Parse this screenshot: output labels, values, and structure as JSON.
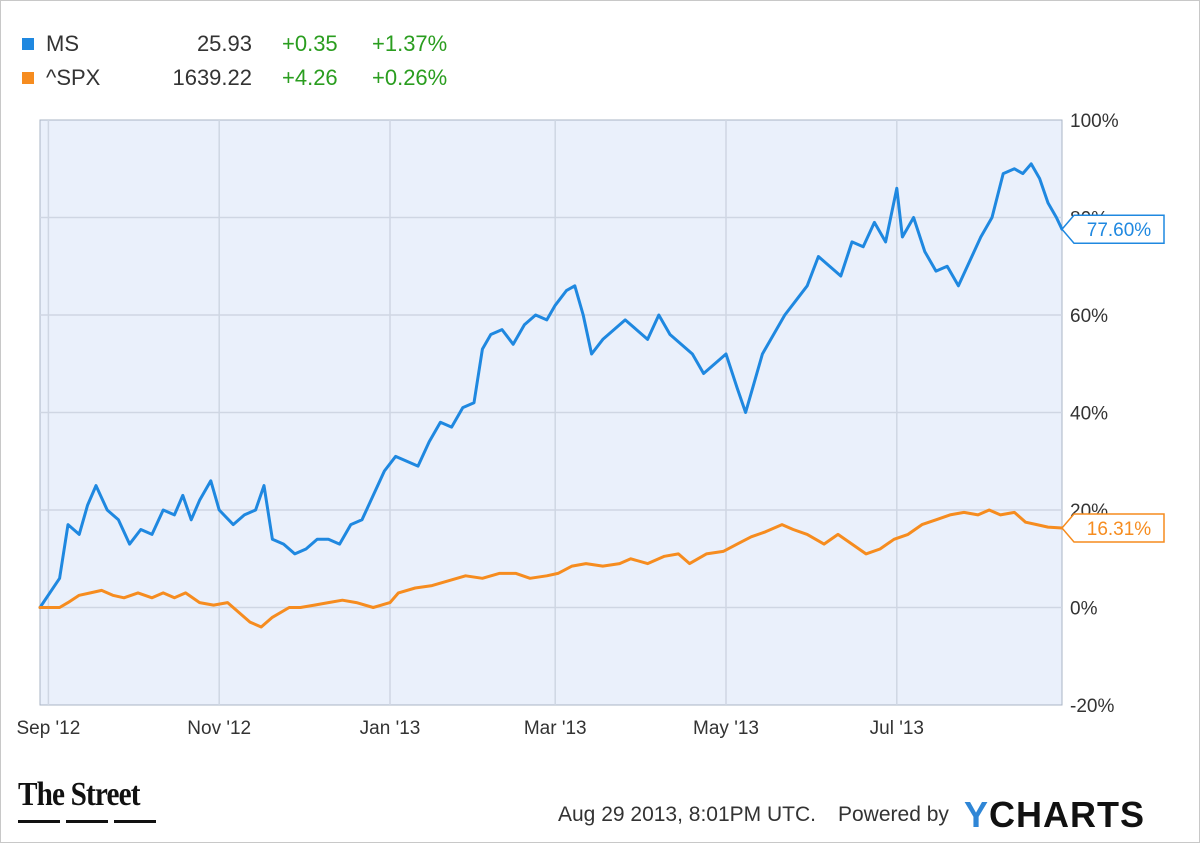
{
  "legend": [
    {
      "name": "MS",
      "price": "25.93",
      "change": "+0.35",
      "pct": "+1.37%",
      "color": "#1f88e0"
    },
    {
      "name": "^SPX",
      "price": "1639.22",
      "change": "+4.26",
      "pct": "+0.26%",
      "color": "#f68c1f"
    }
  ],
  "footer": {
    "brand": "The Street",
    "timestamp": "Aug 29 2013, 8:01PM UTC.",
    "powered_by": "Powered by",
    "ycharts_y": "Y",
    "ycharts_rest": "CHARTS"
  },
  "chart_data": {
    "type": "line",
    "title": "",
    "xlabel": "",
    "ylabel": "",
    "x_range": [
      "2012-08-29",
      "2013-08-29"
    ],
    "ylim": [
      -20,
      100
    ],
    "yticks": [
      -20,
      0,
      20,
      40,
      60,
      80,
      100
    ],
    "ytick_labels": [
      "-20%",
      "0%",
      "20%",
      "40%",
      "60%",
      "80%",
      "100%"
    ],
    "xticks": [
      {
        "date": "2012-09-01",
        "label": "Sep '12"
      },
      {
        "date": "2012-11-01",
        "label": "Nov '12"
      },
      {
        "date": "2013-01-01",
        "label": "Jan '13"
      },
      {
        "date": "2013-03-01",
        "label": "Mar '13"
      },
      {
        "date": "2013-05-01",
        "label": "May '13"
      },
      {
        "date": "2013-07-01",
        "label": "Jul '13"
      }
    ],
    "grid": true,
    "background": "#eaf0fb",
    "series": [
      {
        "name": "MS",
        "color": "#1f88e0",
        "end_label": "77.60%",
        "points": [
          [
            "2012-08-29",
            0
          ],
          [
            "2012-09-05",
            6
          ],
          [
            "2012-09-08",
            17
          ],
          [
            "2012-09-12",
            15
          ],
          [
            "2012-09-15",
            21
          ],
          [
            "2012-09-18",
            25
          ],
          [
            "2012-09-22",
            20
          ],
          [
            "2012-09-26",
            18
          ],
          [
            "2012-09-30",
            13
          ],
          [
            "2012-10-04",
            16
          ],
          [
            "2012-10-08",
            15
          ],
          [
            "2012-10-12",
            20
          ],
          [
            "2012-10-16",
            19
          ],
          [
            "2012-10-19",
            23
          ],
          [
            "2012-10-22",
            18
          ],
          [
            "2012-10-25",
            22
          ],
          [
            "2012-10-29",
            26
          ],
          [
            "2012-11-01",
            20
          ],
          [
            "2012-11-06",
            17
          ],
          [
            "2012-11-10",
            19
          ],
          [
            "2012-11-14",
            20
          ],
          [
            "2012-11-17",
            25
          ],
          [
            "2012-11-20",
            14
          ],
          [
            "2012-11-24",
            13
          ],
          [
            "2012-11-28",
            11
          ],
          [
            "2012-12-02",
            12
          ],
          [
            "2012-12-06",
            14
          ],
          [
            "2012-12-10",
            14
          ],
          [
            "2012-12-14",
            13
          ],
          [
            "2012-12-18",
            17
          ],
          [
            "2012-12-22",
            18
          ],
          [
            "2012-12-26",
            23
          ],
          [
            "2012-12-30",
            28
          ],
          [
            "2013-01-03",
            31
          ],
          [
            "2013-01-07",
            30
          ],
          [
            "2013-01-11",
            29
          ],
          [
            "2013-01-15",
            34
          ],
          [
            "2013-01-19",
            38
          ],
          [
            "2013-01-23",
            37
          ],
          [
            "2013-01-27",
            41
          ],
          [
            "2013-01-31",
            42
          ],
          [
            "2013-02-03",
            53
          ],
          [
            "2013-02-06",
            56
          ],
          [
            "2013-02-10",
            57
          ],
          [
            "2013-02-14",
            54
          ],
          [
            "2013-02-18",
            58
          ],
          [
            "2013-02-22",
            60
          ],
          [
            "2013-02-26",
            59
          ],
          [
            "2013-03-01",
            62
          ],
          [
            "2013-03-05",
            65
          ],
          [
            "2013-03-08",
            66
          ],
          [
            "2013-03-11",
            60
          ],
          [
            "2013-03-14",
            52
          ],
          [
            "2013-03-18",
            55
          ],
          [
            "2013-03-22",
            57
          ],
          [
            "2013-03-26",
            59
          ],
          [
            "2013-03-30",
            57
          ],
          [
            "2013-04-03",
            55
          ],
          [
            "2013-04-07",
            60
          ],
          [
            "2013-04-11",
            56
          ],
          [
            "2013-04-15",
            54
          ],
          [
            "2013-04-19",
            52
          ],
          [
            "2013-04-23",
            48
          ],
          [
            "2013-04-27",
            50
          ],
          [
            "2013-05-01",
            52
          ],
          [
            "2013-05-05",
            45
          ],
          [
            "2013-05-08",
            40
          ],
          [
            "2013-05-11",
            46
          ],
          [
            "2013-05-14",
            52
          ],
          [
            "2013-05-18",
            56
          ],
          [
            "2013-05-22",
            60
          ],
          [
            "2013-05-26",
            63
          ],
          [
            "2013-05-30",
            66
          ],
          [
            "2013-06-03",
            72
          ],
          [
            "2013-06-07",
            70
          ],
          [
            "2013-06-11",
            68
          ],
          [
            "2013-06-15",
            75
          ],
          [
            "2013-06-19",
            74
          ],
          [
            "2013-06-23",
            79
          ],
          [
            "2013-06-27",
            75
          ],
          [
            "2013-07-01",
            86
          ],
          [
            "2013-07-03",
            76
          ],
          [
            "2013-07-07",
            80
          ],
          [
            "2013-07-11",
            73
          ],
          [
            "2013-07-15",
            69
          ],
          [
            "2013-07-19",
            70
          ],
          [
            "2013-07-23",
            66
          ],
          [
            "2013-07-27",
            71
          ],
          [
            "2013-07-31",
            76
          ],
          [
            "2013-08-04",
            80
          ],
          [
            "2013-08-08",
            89
          ],
          [
            "2013-08-12",
            90
          ],
          [
            "2013-08-15",
            89
          ],
          [
            "2013-08-18",
            91
          ],
          [
            "2013-08-21",
            88
          ],
          [
            "2013-08-24",
            83
          ],
          [
            "2013-08-27",
            80
          ],
          [
            "2013-08-29",
            77.6
          ]
        ]
      },
      {
        "name": "^SPX",
        "color": "#f68c1f",
        "end_label": "16.31%",
        "points": [
          [
            "2012-08-29",
            0
          ],
          [
            "2012-09-05",
            0
          ],
          [
            "2012-09-08",
            1
          ],
          [
            "2012-09-12",
            2.5
          ],
          [
            "2012-09-16",
            3
          ],
          [
            "2012-09-20",
            3.5
          ],
          [
            "2012-09-24",
            2.5
          ],
          [
            "2012-09-28",
            2
          ],
          [
            "2012-10-03",
            3
          ],
          [
            "2012-10-08",
            2
          ],
          [
            "2012-10-12",
            3
          ],
          [
            "2012-10-16",
            2
          ],
          [
            "2012-10-20",
            3
          ],
          [
            "2012-10-25",
            1
          ],
          [
            "2012-10-30",
            0.5
          ],
          [
            "2012-11-04",
            1
          ],
          [
            "2012-11-08",
            -1
          ],
          [
            "2012-11-12",
            -3
          ],
          [
            "2012-11-16",
            -4
          ],
          [
            "2012-11-20",
            -2
          ],
          [
            "2012-11-26",
            0
          ],
          [
            "2012-11-30",
            0
          ],
          [
            "2012-12-05",
            0.5
          ],
          [
            "2012-12-10",
            1
          ],
          [
            "2012-12-15",
            1.5
          ],
          [
            "2012-12-20",
            1
          ],
          [
            "2012-12-26",
            0
          ],
          [
            "2013-01-01",
            1
          ],
          [
            "2013-01-04",
            3
          ],
          [
            "2013-01-10",
            4
          ],
          [
            "2013-01-16",
            4.5
          ],
          [
            "2013-01-22",
            5.5
          ],
          [
            "2013-01-28",
            6.5
          ],
          [
            "2013-02-03",
            6
          ],
          [
            "2013-02-09",
            7
          ],
          [
            "2013-02-15",
            7
          ],
          [
            "2013-02-20",
            6
          ],
          [
            "2013-02-26",
            6.5
          ],
          [
            "2013-03-02",
            7
          ],
          [
            "2013-03-07",
            8.5
          ],
          [
            "2013-03-12",
            9
          ],
          [
            "2013-03-18",
            8.5
          ],
          [
            "2013-03-24",
            9
          ],
          [
            "2013-03-28",
            10
          ],
          [
            "2013-04-03",
            9
          ],
          [
            "2013-04-09",
            10.5
          ],
          [
            "2013-04-14",
            11
          ],
          [
            "2013-04-18",
            9
          ],
          [
            "2013-04-24",
            11
          ],
          [
            "2013-04-30",
            11.5
          ],
          [
            "2013-05-05",
            13
          ],
          [
            "2013-05-10",
            14.5
          ],
          [
            "2013-05-15",
            15.5
          ],
          [
            "2013-05-21",
            17
          ],
          [
            "2013-05-25",
            16
          ],
          [
            "2013-05-30",
            15
          ],
          [
            "2013-06-05",
            13
          ],
          [
            "2013-06-10",
            15
          ],
          [
            "2013-06-15",
            13
          ],
          [
            "2013-06-20",
            11
          ],
          [
            "2013-06-25",
            12
          ],
          [
            "2013-06-30",
            14
          ],
          [
            "2013-07-05",
            15
          ],
          [
            "2013-07-10",
            17
          ],
          [
            "2013-07-15",
            18
          ],
          [
            "2013-07-20",
            19
          ],
          [
            "2013-07-25",
            19.5
          ],
          [
            "2013-07-30",
            19
          ],
          [
            "2013-08-03",
            20
          ],
          [
            "2013-08-07",
            19
          ],
          [
            "2013-08-12",
            19.5
          ],
          [
            "2013-08-16",
            17.5
          ],
          [
            "2013-08-20",
            17
          ],
          [
            "2013-08-24",
            16.5
          ],
          [
            "2013-08-29",
            16.31
          ]
        ]
      }
    ]
  }
}
